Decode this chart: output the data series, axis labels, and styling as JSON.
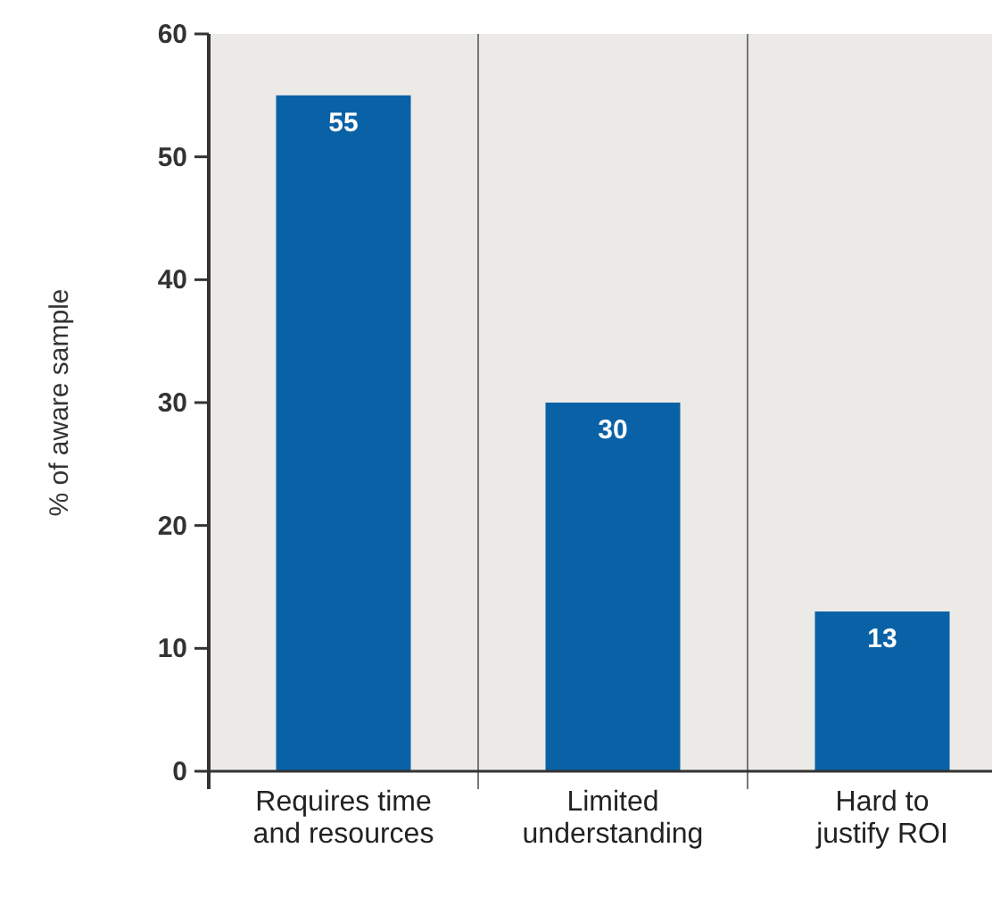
{
  "chart_data": {
    "type": "bar",
    "ylabel": "% of aware sample",
    "categories": [
      "Requires time and resources",
      "Limited understanding",
      "Hard to justify ROI"
    ],
    "values": [
      55,
      30,
      13
    ],
    "color": "#0a62a6",
    "ylim": [
      0,
      60
    ],
    "yticks": [
      0,
      10,
      20,
      30,
      40,
      50,
      60
    ],
    "grid": "x",
    "data_labels": true
  }
}
